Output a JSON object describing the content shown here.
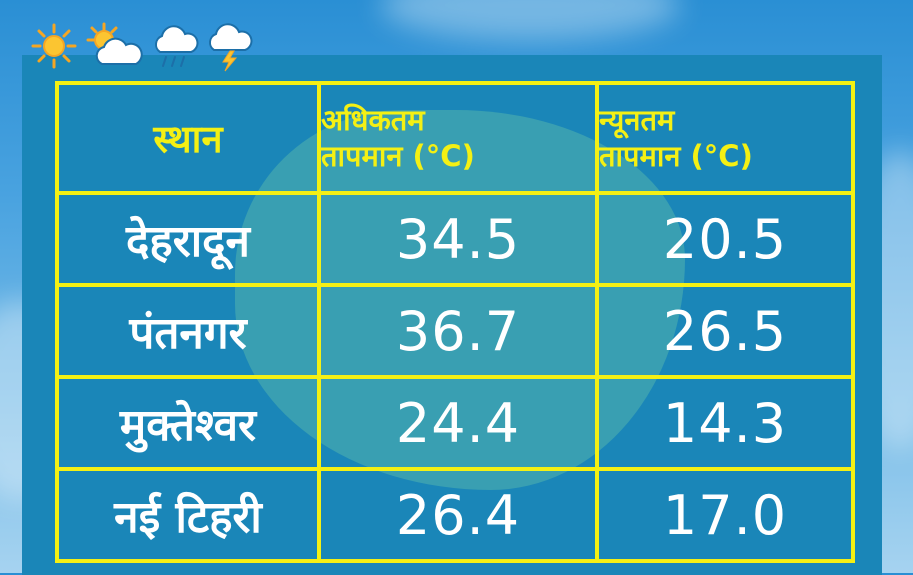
{
  "weather_icons": [
    "sun-icon",
    "partly-cloudy-icon",
    "rain-cloud-icon",
    "thunderstorm-icon"
  ],
  "colors": {
    "panel": "#1a86b8",
    "border": "#f4f014",
    "header_text": "#f4f014",
    "cell_text": "#ffffff"
  },
  "table": {
    "headers": {
      "place": "स्थान",
      "max_line1": "अधिकतम",
      "max_line2": "तापमान (°C)",
      "min_line1": "न्यूनतम",
      "min_line2": "तापमान (°C)"
    },
    "rows": [
      {
        "place": "देहरादून",
        "max": "34.5",
        "min": "20.5"
      },
      {
        "place": "पंतनगर",
        "max": "36.7",
        "min": "26.5"
      },
      {
        "place": "मुक्तेश्वर",
        "max": "24.4",
        "min": "14.3"
      },
      {
        "place": "नई टिहरी",
        "max": "26.4",
        "min": "17.0"
      }
    ]
  }
}
